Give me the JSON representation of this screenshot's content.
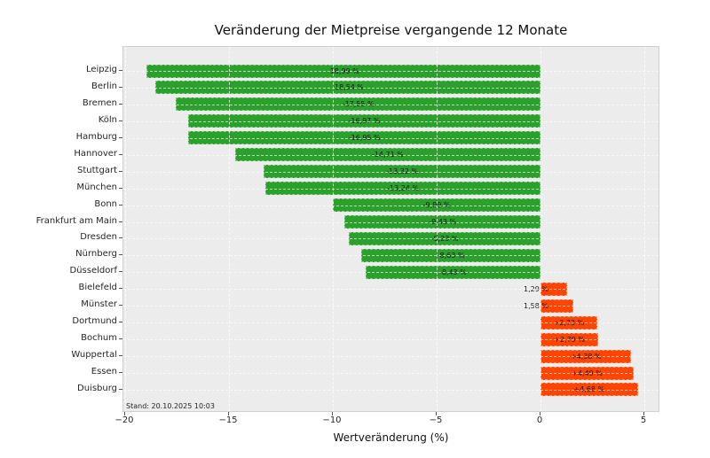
{
  "chart_data": {
    "type": "bar",
    "orientation": "horizontal",
    "title": "Veränderung der Mietpreise vergangende 12 Monate",
    "xlabel": "Wertveränderung (%)",
    "annotation": "Stand: 20.10.2025 10:03",
    "xlim": [
      -20.1,
      5.8
    ],
    "x_ticks": [
      -20,
      -15,
      -10,
      -5,
      0,
      5
    ],
    "x_tick_labels": [
      "−20",
      "−15",
      "−10",
      "−5",
      "0",
      "5"
    ],
    "grid": "dashed",
    "legend": "none",
    "categories": [
      "Leipzig",
      "Berlin",
      "Bremen",
      "Köln",
      "Hamburg",
      "Hannover",
      "Stuttgart",
      "München",
      "Bonn",
      "Frankfurt am Main",
      "Dresden",
      "Nürnberg",
      "Düsseldorf",
      "Bielefeld",
      "Münster",
      "Dortmund",
      "Bochum",
      "Wuppertal",
      "Essen",
      "Duisburg"
    ],
    "values": [
      -18.99,
      -18.54,
      -17.55,
      -16.97,
      -16.95,
      -14.71,
      -13.32,
      -13.24,
      -9.99,
      -9.43,
      -9.23,
      -8.63,
      -8.43,
      1.29,
      1.58,
      2.73,
      2.79,
      4.38,
      4.49,
      4.68
    ],
    "bar_labels": [
      "-18,99 %",
      "-18,54 %",
      "-17,55 %",
      "-16,97 %",
      "-16,95 %",
      "-14,71 %",
      "-13,32 %",
      "-13,24 %",
      "-9,99 %",
      "-9,43 %",
      "-9,23 %",
      "-8,63 %",
      "-8,43 %",
      "1,29 %",
      "1,58 %",
      "+2,73 %",
      "+2,79 %",
      "+4,38 %",
      "+4,49 %",
      "+4,68 %"
    ],
    "label_placement": [
      "inside",
      "inside",
      "inside",
      "inside",
      "inside",
      "inside",
      "inside",
      "inside",
      "inside",
      "inside",
      "inside",
      "inside",
      "inside",
      "outside-left",
      "outside-left",
      "inside",
      "inside",
      "inside",
      "inside",
      "inside"
    ],
    "colors": {
      "negative_bar": "#2ca02c",
      "positive_bar": "#ff4500",
      "plot_background": "#ececec",
      "grid_line": "#ffffff",
      "bar_label_text": "#1a1a1a"
    }
  }
}
